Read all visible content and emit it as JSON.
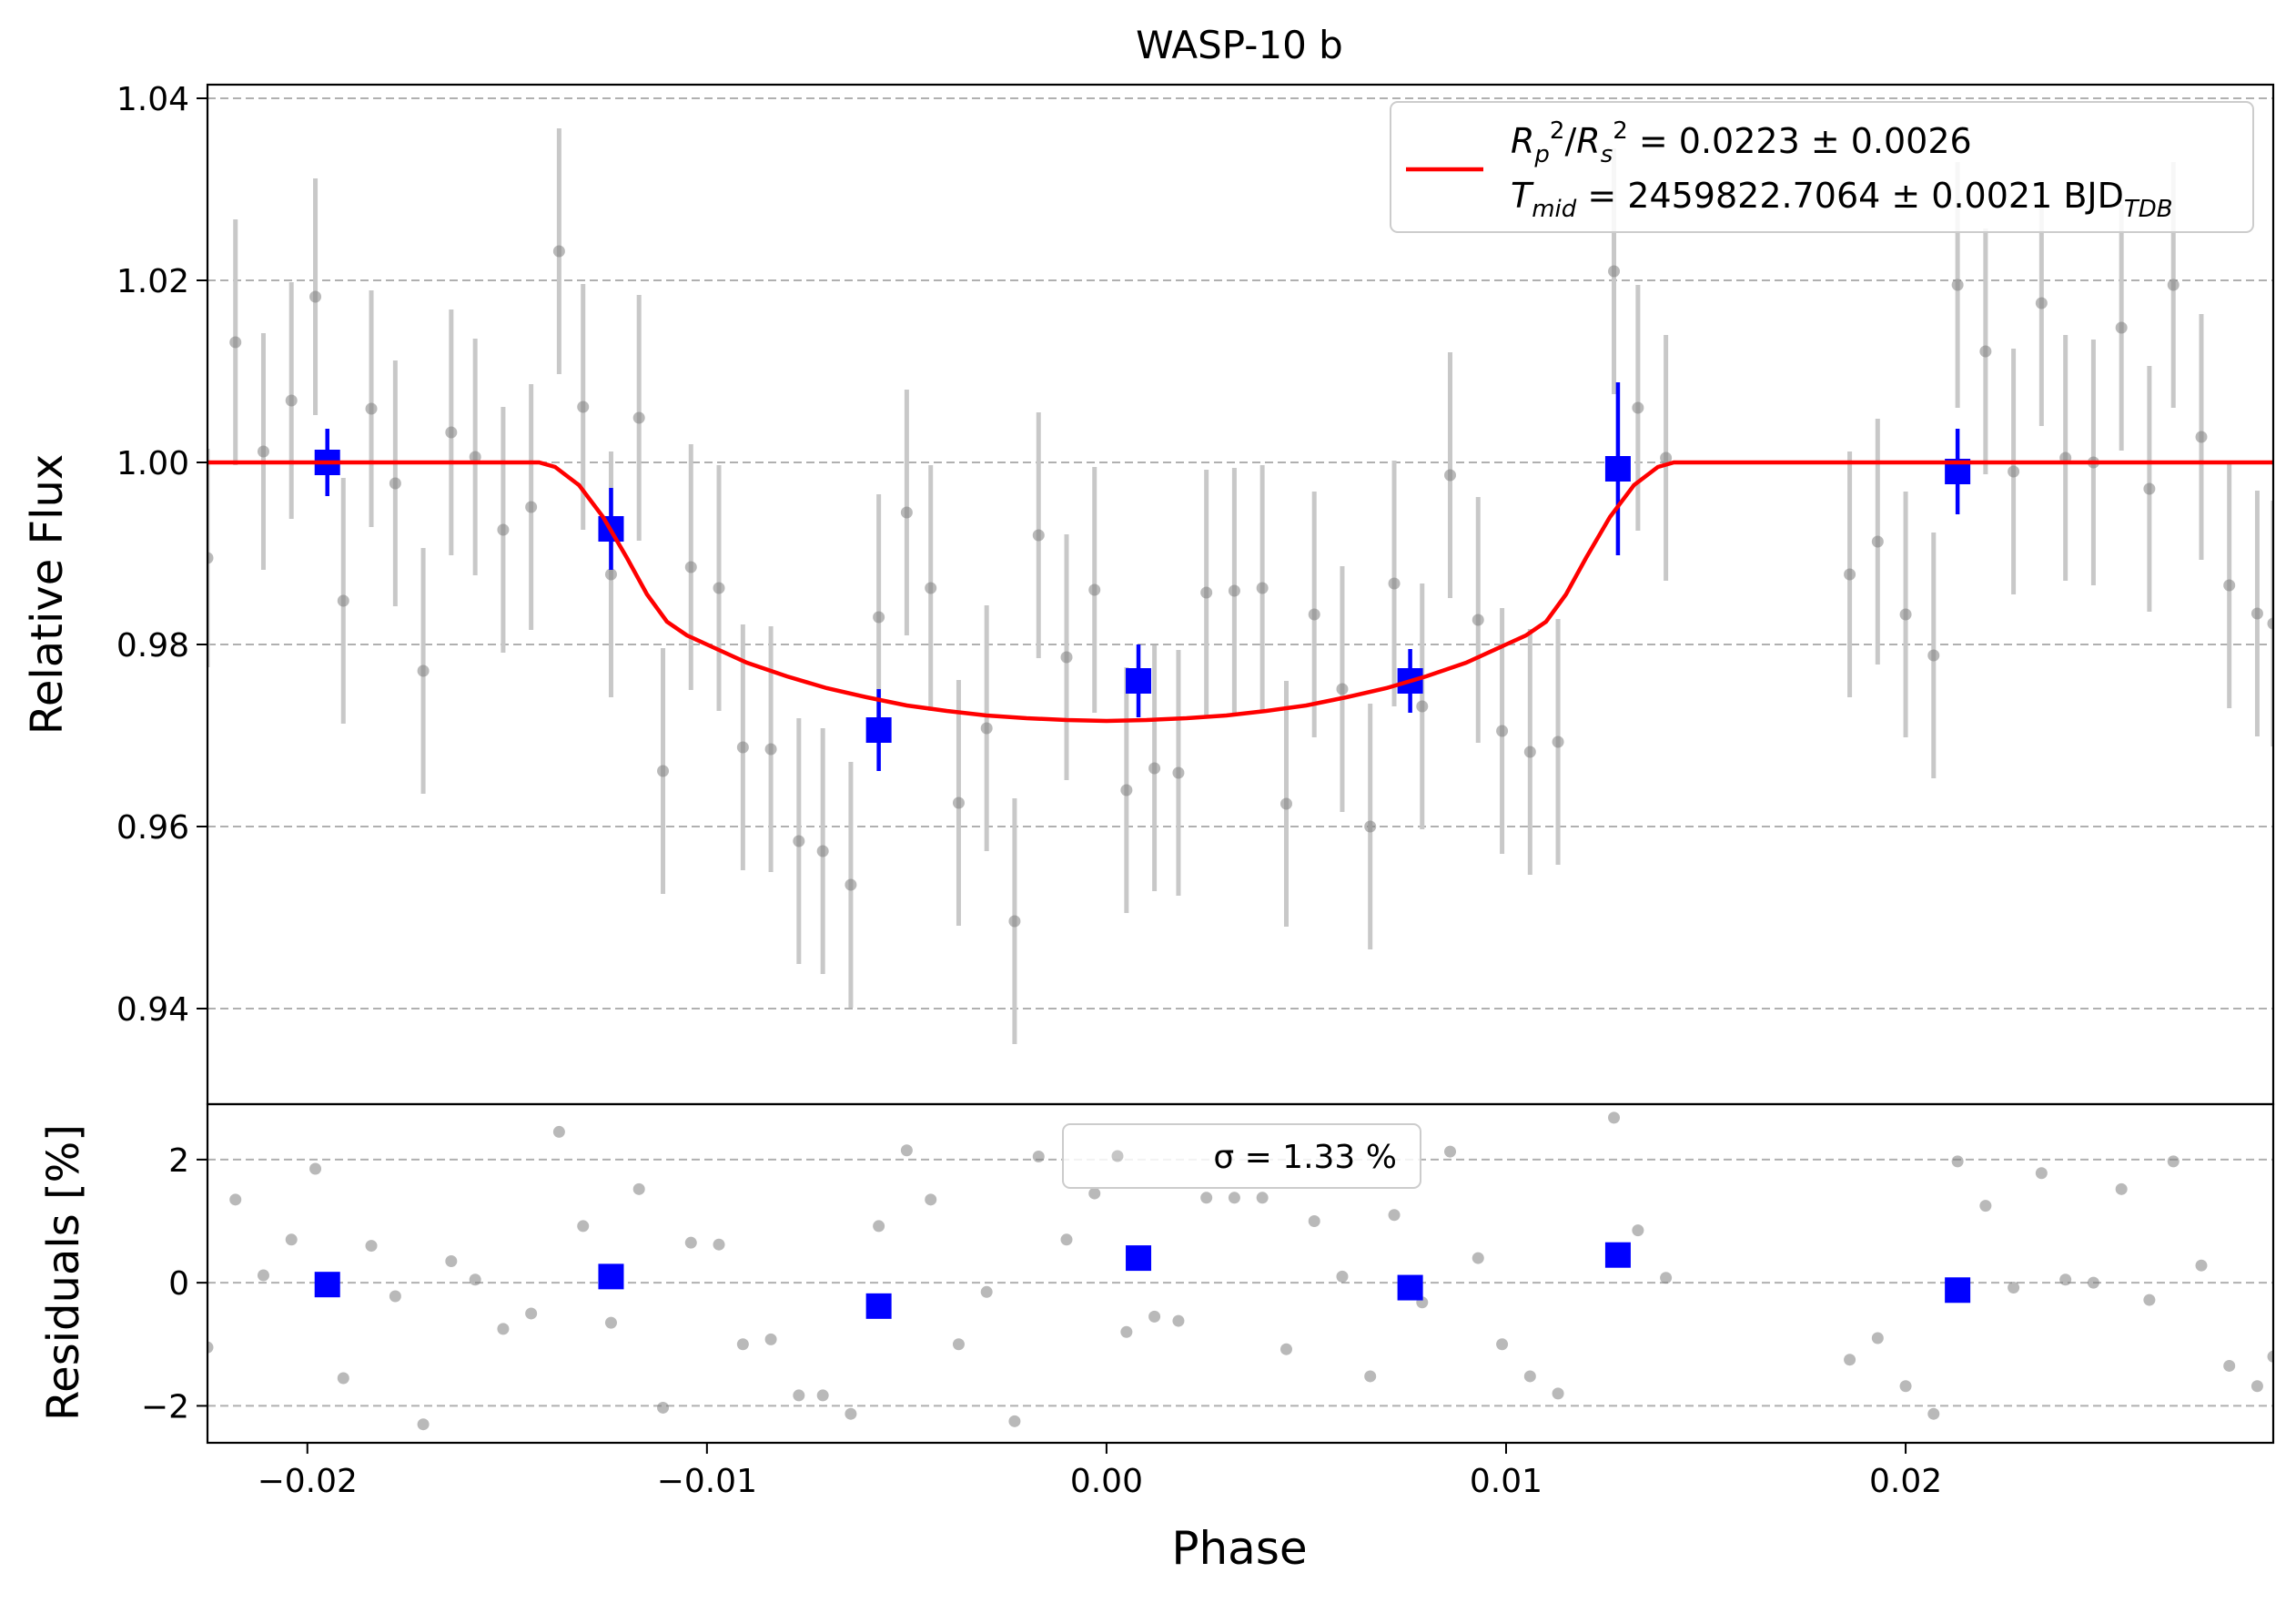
{
  "chart_data": [
    {
      "type": "scatter",
      "title": "WASP-10 b",
      "xlabel": "",
      "ylabel": "Relative Flux",
      "xlim": [
        -0.0225,
        0.0292
      ],
      "ylim": [
        0.9295,
        1.0415
      ],
      "yticks": [
        0.94,
        0.96,
        0.98,
        1.0,
        1.02,
        1.04
      ],
      "ytick_labels": [
        "0.94",
        "0.96",
        "0.98",
        "1.00",
        "1.02",
        "1.04"
      ],
      "grid": "horizontal dashed",
      "legend": {
        "placement": "top-right",
        "lines": [
          "R_p^2/R_s^2 = 0.0223 ± 0.0026",
          "T_mid = 2459822.7064 ± 0.0021 BJD_TDB"
        ]
      },
      "series": [
        {
          "name": "",
          "style": "gray-points",
          "color": "#808080",
          "errorbar_color": "#c8c8c8",
          "x": [
            -0.0225,
            -0.0218,
            -0.0211,
            -0.0204,
            -0.0198,
            -0.0191,
            -0.0184,
            -0.0178,
            -0.0171,
            -0.0164,
            -0.0158,
            -0.0151,
            -0.0144,
            -0.0137,
            -0.0131,
            -0.0124,
            -0.0117,
            -0.0111,
            -0.0104,
            -0.0097,
            -0.0091,
            -0.0084,
            -0.0077,
            -0.0071,
            -0.0064,
            -0.0057,
            -0.005,
            -0.0044,
            -0.0037,
            -0.003,
            -0.0023,
            -0.0017,
            -0.001,
            -0.0003,
            0.0005,
            0.0012,
            0.0018,
            0.0025,
            0.0032,
            0.0039,
            0.0045,
            0.0052,
            0.0059,
            0.0066,
            0.0072,
            0.0079,
            0.0086,
            0.0093,
            0.0099,
            0.0106,
            0.0113,
            0.0127,
            0.0133,
            0.014,
            0.0186,
            0.0193,
            0.02,
            0.0207,
            0.0213,
            0.022,
            0.0227,
            0.0234,
            0.024,
            0.0247,
            0.0254,
            0.0261,
            0.0267,
            0.0274,
            0.0281,
            0.0288,
            0.0292
          ],
          "y": [
            0.9895,
            1.0132,
            1.0012,
            1.0068,
            1.0182,
            0.9848,
            1.0059,
            0.9977,
            0.9771,
            1.0033,
            1.0006,
            0.9926,
            0.9951,
            1.0232,
            1.0061,
            0.9877,
            1.0049,
            0.9661,
            0.9885,
            0.9862,
            0.9687,
            0.9685,
            0.9584,
            0.9573,
            0.9536,
            0.983,
            0.9945,
            0.9862,
            0.9626,
            0.9708,
            0.9496,
            0.992,
            0.9786,
            0.986,
            0.964,
            0.9664,
            0.9659,
            0.9857,
            0.9859,
            0.9862,
            0.9625,
            0.9833,
            0.9751,
            0.96,
            0.9867,
            0.9732,
            0.9986,
            0.9827,
            0.9705,
            0.9682,
            0.9693,
            1.021,
            1.006,
            1.0005,
            0.9877,
            0.9913,
            0.9833,
            0.9788,
            1.0195,
            1.0122,
            0.999,
            1.0175,
            1.0005,
            1.0,
            1.0148,
            0.9971,
            1.0195,
            1.0028,
            0.9865,
            0.9834,
            0.9823
          ],
          "err": [
            0.012,
            0.0135,
            0.013,
            0.013,
            0.013,
            0.0135,
            0.013,
            0.0135,
            0.0135,
            0.0135,
            0.013,
            0.0135,
            0.0135,
            0.0135,
            0.0135,
            0.0135,
            0.0135,
            0.0135,
            0.0135,
            0.0135,
            0.0135,
            0.0135,
            0.0135,
            0.0135,
            0.0135,
            0.0135,
            0.0135,
            0.0135,
            0.0135,
            0.0135,
            0.0135,
            0.0135,
            0.0135,
            0.0135,
            0.0135,
            0.0135,
            0.0135,
            0.0135,
            0.0135,
            0.0135,
            0.0135,
            0.0135,
            0.0135,
            0.0135,
            0.0135,
            0.0135,
            0.0135,
            0.0135,
            0.0135,
            0.0135,
            0.0135,
            0.0135,
            0.0135,
            0.0135,
            0.0135,
            0.0135,
            0.0135,
            0.0135,
            0.0135,
            0.0135,
            0.0135,
            0.0135,
            0.0135,
            0.0135,
            0.0135,
            0.0135,
            0.0135,
            0.0135,
            0.0135,
            0.0135,
            0.0135
          ]
        },
        {
          "name": "",
          "style": "blue-squares",
          "color": "#0000ff",
          "x": [
            -0.0195,
            -0.0124,
            -0.0057,
            0.0008,
            0.0076,
            0.0128,
            0.0213
          ],
          "y": [
            1.0,
            0.9927,
            0.9706,
            0.976,
            0.976,
            0.9993,
            0.999
          ],
          "err": [
            0.0037,
            0.0045,
            0.0045,
            0.004,
            0.0035,
            0.0095,
            0.0047
          ]
        },
        {
          "name": "R_p^2/R_s^2 = 0.0223 ± 0.0026",
          "style": "red-line",
          "color": "#ff0000",
          "x": [
            -0.0225,
            -0.0142,
            -0.0138,
            -0.0132,
            -0.0126,
            -0.012,
            -0.0115,
            -0.011,
            -0.0105,
            -0.01,
            -0.009,
            -0.008,
            -0.007,
            -0.006,
            -0.005,
            -0.004,
            -0.003,
            -0.002,
            -0.001,
            0.0,
            0.001,
            0.002,
            0.003,
            0.004,
            0.005,
            0.006,
            0.007,
            0.008,
            0.009,
            0.01,
            0.0105,
            0.011,
            0.0115,
            0.012,
            0.0126,
            0.0132,
            0.0138,
            0.0142,
            0.0292
          ],
          "y": [
            1.0,
            1.0,
            0.9995,
            0.9975,
            0.994,
            0.9895,
            0.9855,
            0.9825,
            0.981,
            0.98,
            0.978,
            0.9765,
            0.9752,
            0.9742,
            0.9733,
            0.9727,
            0.9722,
            0.9719,
            0.9717,
            0.9716,
            0.9717,
            0.9719,
            0.9722,
            0.9727,
            0.9733,
            0.9742,
            0.9752,
            0.9765,
            0.978,
            0.98,
            0.981,
            0.9825,
            0.9855,
            0.9895,
            0.994,
            0.9975,
            0.9995,
            1.0,
            1.0
          ]
        }
      ]
    },
    {
      "type": "scatter",
      "title": "",
      "xlabel": "Phase",
      "ylabel": "Residuals [%]",
      "xlim": [
        -0.0225,
        0.0292
      ],
      "ylim": [
        -2.6,
        2.9
      ],
      "xticks": [
        -0.02,
        -0.01,
        0.0,
        0.01,
        0.02
      ],
      "xtick_labels": [
        "−0.02",
        "−0.01",
        "0.00",
        "0.01",
        "0.02"
      ],
      "yticks": [
        -2,
        0,
        2
      ],
      "ytick_labels": [
        "−2",
        "0",
        "2"
      ],
      "grid": "horizontal dashed",
      "legend": {
        "placement": "top-center",
        "lines": [
          "σ = 1.33 %"
        ]
      },
      "series": [
        {
          "name": "",
          "style": "gray-points",
          "color": "#808080",
          "x": [
            -0.0225,
            -0.0218,
            -0.0211,
            -0.0204,
            -0.0198,
            -0.0191,
            -0.0184,
            -0.0178,
            -0.0171,
            -0.0164,
            -0.0158,
            -0.0151,
            -0.0144,
            -0.0137,
            -0.0131,
            -0.0124,
            -0.0117,
            -0.0111,
            -0.0104,
            -0.0097,
            -0.0091,
            -0.0084,
            -0.0077,
            -0.0071,
            -0.0064,
            -0.0057,
            -0.005,
            -0.0044,
            -0.0037,
            -0.003,
            -0.0023,
            -0.0017,
            -0.001,
            -0.0003,
            0.0005,
            0.0012,
            0.0018,
            0.0025,
            0.0032,
            0.0039,
            0.0045,
            0.0052,
            0.0059,
            0.0066,
            0.0072,
            0.0079,
            0.0086,
            0.0093,
            0.0099,
            0.0106,
            0.0113,
            0.0127,
            0.0133,
            0.014,
            0.0186,
            0.0193,
            0.02,
            0.0207,
            0.0213,
            0.022,
            0.0227,
            0.0234,
            0.024,
            0.0247,
            0.0254,
            0.0261,
            0.0267,
            0.0274,
            0.0281,
            0.0288,
            0.0292
          ],
          "y": [
            -1.05,
            1.35,
            0.12,
            0.7,
            1.85,
            -1.55,
            0.6,
            -0.22,
            -2.3,
            0.35,
            0.05,
            -0.75,
            -0.5,
            2.45,
            0.92,
            -0.65,
            1.52,
            -2.03,
            0.65,
            0.62,
            -1.0,
            -0.92,
            -1.83,
            -1.83,
            -2.13,
            0.92,
            2.15,
            1.35,
            -1.0,
            -0.15,
            -2.25,
            2.05,
            0.7,
            1.45,
            -0.8,
            -0.55,
            -0.62,
            1.38,
            1.38,
            1.38,
            -1.08,
            1.0,
            0.1,
            -1.52,
            1.1,
            -0.32,
            2.13,
            0.4,
            -1.0,
            -1.52,
            -1.8,
            2.68,
            0.85,
            0.08,
            -1.25,
            -0.9,
            -1.68,
            -2.13,
            1.97,
            1.25,
            -0.08,
            1.78,
            0.05,
            0.0,
            1.52,
            -0.28,
            1.97,
            0.28,
            -1.35,
            -1.68,
            -1.2
          ]
        },
        {
          "name": "",
          "style": "blue-squares",
          "color": "#0000ff",
          "x": [
            -0.0195,
            -0.0124,
            -0.0057,
            0.0008,
            0.0076,
            0.0128,
            0.0213
          ],
          "y": [
            -0.03,
            0.1,
            -0.38,
            0.4,
            -0.08,
            0.45,
            -0.12
          ]
        }
      ]
    }
  ]
}
